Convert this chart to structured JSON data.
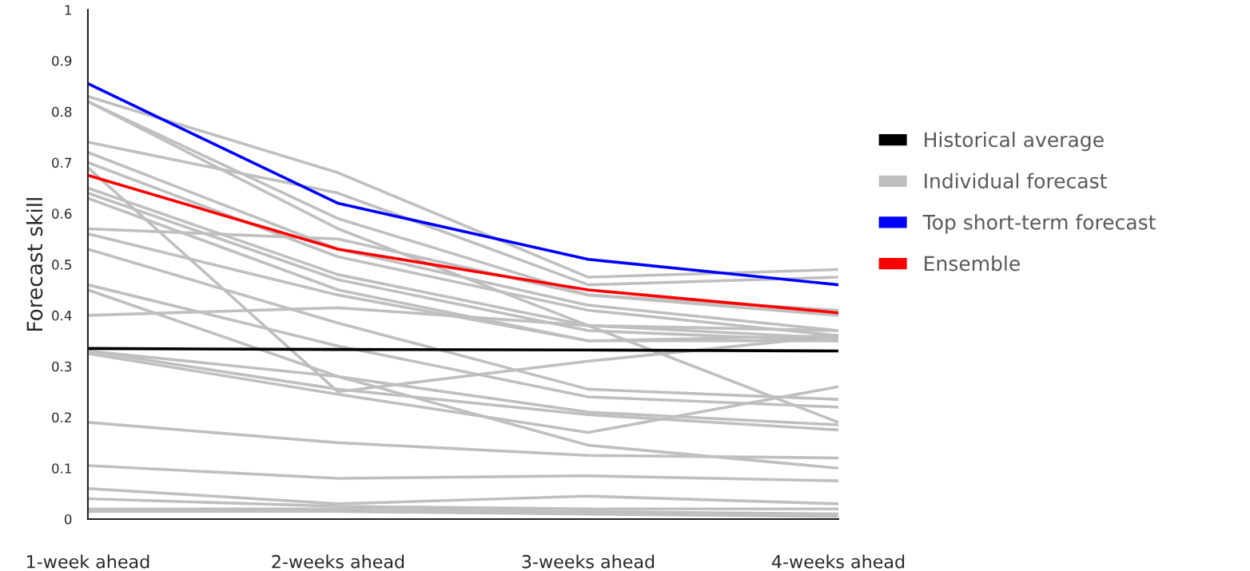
{
  "chart_data": {
    "type": "line",
    "ylabel": "Forecast skill",
    "categories": [
      "1-week ahead",
      "2-weeks ahead",
      "3-weeks ahead",
      "4-weeks ahead"
    ],
    "ylim": [
      0,
      1
    ],
    "yticks": [
      0,
      0.1,
      0.2,
      0.3,
      0.4,
      0.5,
      0.6,
      0.7,
      0.8,
      0.9,
      1
    ],
    "grid": false,
    "legend": "right",
    "marker": "none",
    "line_style": "solid",
    "series": [
      {
        "name": "Individual forecast",
        "color": "#bfbfbf",
        "values": [
          0.83,
          0.68,
          0.475,
          0.49
        ]
      },
      {
        "color": "#bfbfbf",
        "values": [
          0.82,
          0.59,
          0.44,
          0.41
        ]
      },
      {
        "color": "#bfbfbf",
        "values": [
          0.82,
          0.57,
          0.38,
          0.19
        ]
      },
      {
        "color": "#bfbfbf",
        "values": [
          0.74,
          0.64,
          0.46,
          0.475
        ]
      },
      {
        "color": "#bfbfbf",
        "values": [
          0.72,
          0.53,
          0.42,
          0.37
        ]
      },
      {
        "color": "#bfbfbf",
        "values": [
          0.7,
          0.515,
          0.41,
          0.36
        ]
      },
      {
        "color": "#bfbfbf",
        "values": [
          0.69,
          0.25,
          0.31,
          0.36
        ]
      },
      {
        "color": "#bfbfbf",
        "values": [
          0.65,
          0.48,
          0.38,
          0.355
        ]
      },
      {
        "color": "#bfbfbf",
        "values": [
          0.64,
          0.47,
          0.37,
          0.35
        ]
      },
      {
        "color": "#bfbfbf",
        "values": [
          0.63,
          0.45,
          0.35,
          0.35
        ]
      },
      {
        "color": "#bfbfbf",
        "values": [
          0.57,
          0.55,
          0.44,
          0.4
        ]
      },
      {
        "color": "#bfbfbf",
        "values": [
          0.56,
          0.44,
          0.35,
          0.36
        ]
      },
      {
        "color": "#bfbfbf",
        "values": [
          0.53,
          0.385,
          0.255,
          0.235
        ]
      },
      {
        "color": "#bfbfbf",
        "values": [
          0.46,
          0.34,
          0.24,
          0.22
        ]
      },
      {
        "color": "#bfbfbf",
        "values": [
          0.45,
          0.28,
          0.145,
          0.1
        ]
      },
      {
        "color": "#bfbfbf",
        "values": [
          0.4,
          0.415,
          0.38,
          0.37
        ]
      },
      {
        "color": "#bfbfbf",
        "values": [
          0.33,
          0.28,
          0.21,
          0.185
        ]
      },
      {
        "color": "#bfbfbf",
        "values": [
          0.33,
          0.255,
          0.205,
          0.175
        ]
      },
      {
        "color": "#bfbfbf",
        "values": [
          0.325,
          0.245,
          0.17,
          0.26
        ]
      },
      {
        "color": "#bfbfbf",
        "values": [
          0.19,
          0.15,
          0.125,
          0.12
        ]
      },
      {
        "color": "#bfbfbf",
        "values": [
          0.105,
          0.08,
          0.085,
          0.075
        ]
      },
      {
        "color": "#bfbfbf",
        "values": [
          0.06,
          0.03,
          0.045,
          0.03
        ]
      },
      {
        "color": "#bfbfbf",
        "values": [
          0.04,
          0.025,
          0.02,
          0.02
        ]
      },
      {
        "color": "#bfbfbf",
        "values": [
          0.02,
          0.02,
          0.015,
          0.01
        ]
      },
      {
        "color": "#bfbfbf",
        "values": [
          0.015,
          0.015,
          0.01,
          0.005
        ]
      },
      {
        "name": "Historical average",
        "color": "#000000",
        "values": [
          0.335,
          0.333,
          0.332,
          0.33
        ]
      },
      {
        "name": "Top short-term forecast",
        "color": "#0000ff",
        "values": [
          0.855,
          0.62,
          0.51,
          0.46
        ]
      },
      {
        "name": "Ensemble",
        "color": "#ff0000",
        "values": [
          0.675,
          0.53,
          0.45,
          0.405
        ]
      }
    ]
  }
}
